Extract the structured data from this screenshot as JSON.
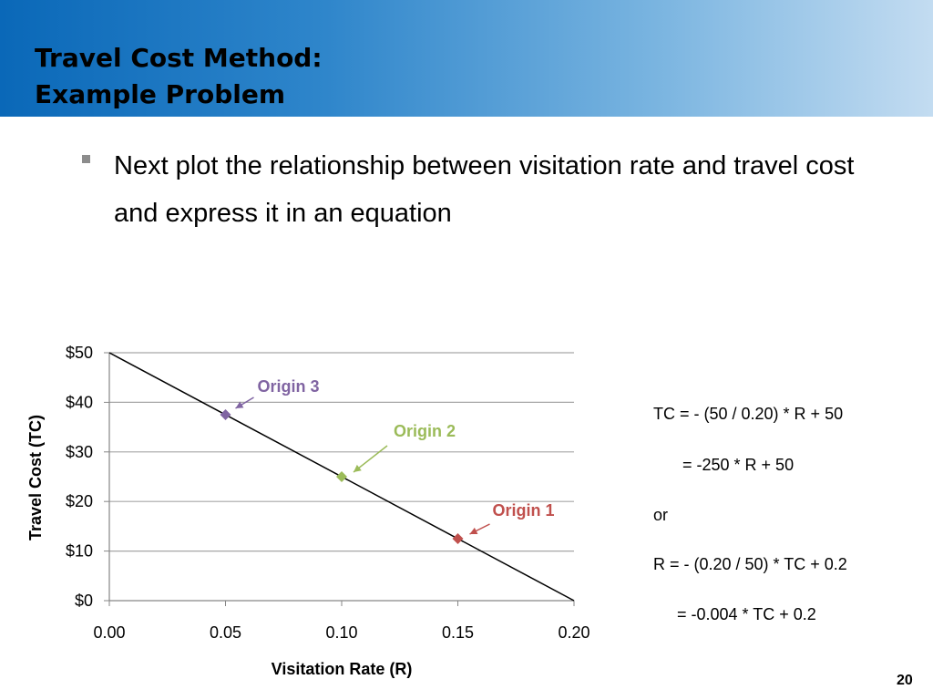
{
  "slide": {
    "title_line1": "Travel Cost Method:",
    "title_line2": "Example Problem",
    "bullet": "Next plot the relationship between visitation rate and travel cost and express it in an equation",
    "page_number": "20",
    "colors": {
      "header_start": "#0a68b8",
      "header_end": "#c3dcf1"
    }
  },
  "equations": {
    "line1": "TC = - (50 / 0.20) * R + 50",
    "line2": "= -250 * R + 50",
    "line3": "or",
    "line4": "R  = - (0.20 / 50) * TC + 0.2",
    "line5": "= -0.004 * TC + 0.2"
  },
  "chart_data": {
    "type": "scatter",
    "xlabel": "Visitation Rate (R)",
    "ylabel": "Travel Cost (TC)",
    "xlim": [
      0,
      0.2
    ],
    "ylim": [
      0,
      50
    ],
    "x_ticks": [
      "0.00",
      "0.05",
      "0.10",
      "0.15",
      "0.20"
    ],
    "y_ticks": [
      "$0",
      "$10",
      "$20",
      "$30",
      "$40",
      "$50"
    ],
    "grid": "horizontal",
    "line": {
      "x": [
        0,
        0.2
      ],
      "y": [
        50,
        0
      ],
      "color": "#000000"
    },
    "points": [
      {
        "label": "Origin 3",
        "x": 0.05,
        "y": 37.5,
        "color": "#8064a2"
      },
      {
        "label": "Origin 2",
        "x": 0.1,
        "y": 25,
        "color": "#9bbb59"
      },
      {
        "label": "Origin 1",
        "x": 0.15,
        "y": 12.5,
        "color": "#c0504d"
      }
    ]
  }
}
